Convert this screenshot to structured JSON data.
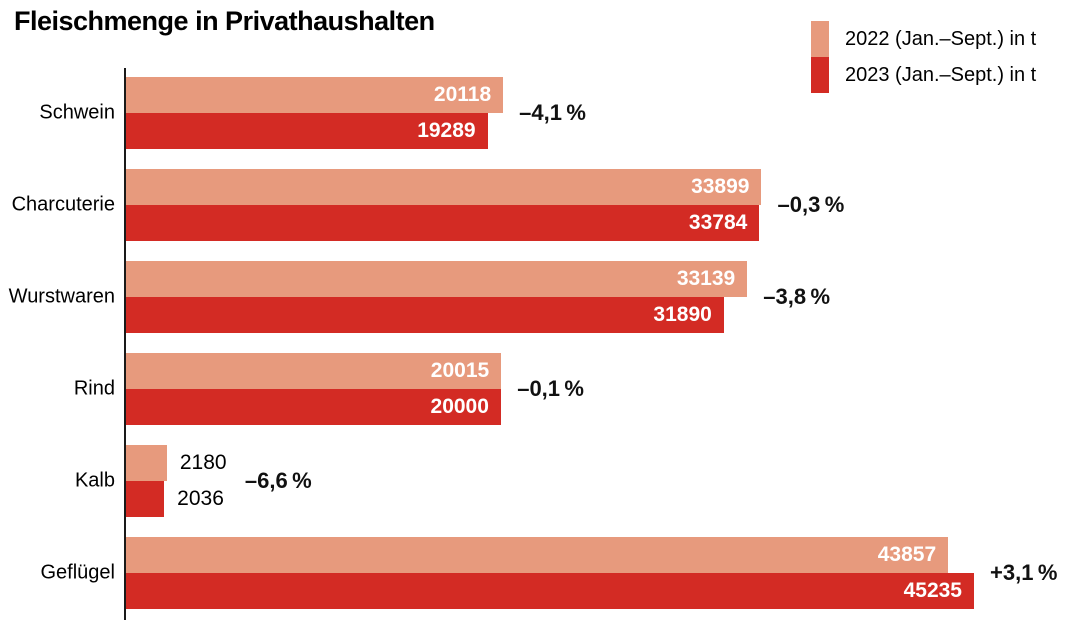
{
  "title": "Fleischmenge in Privathaushalten",
  "legend": {
    "items": [
      {
        "label": "2022 (Jan.–Sept.) in t",
        "color": "#e79a7d"
      },
      {
        "label": "2023 (Jan.–Sept.) in t",
        "color": "#d32b24"
      }
    ]
  },
  "chart_data": {
    "type": "bar",
    "orientation": "horizontal",
    "title": "Fleischmenge in Privathaushalten",
    "categories": [
      "Schwein",
      "Charcuterie",
      "Wurstwaren",
      "Rind",
      "Kalb",
      "Geflügel"
    ],
    "series": [
      {
        "name": "2022 (Jan.–Sept.) in t",
        "color": "#e79a7d",
        "values": [
          20118,
          33899,
          33139,
          20015,
          2180,
          43857
        ]
      },
      {
        "name": "2023 (Jan.–Sept.) in t",
        "color": "#d32b24",
        "values": [
          19289,
          33784,
          31890,
          20000,
          2036,
          45235
        ]
      }
    ],
    "change_labels": [
      "–4,1 %",
      "–0,3 %",
      "–3,8 %",
      "–0,1 %",
      "–6,6 %",
      "+3,1 %"
    ],
    "xlim": [
      0,
      45235
    ],
    "value_label_position": "inside-end-or-outside-when-short",
    "legend_position": "top-right",
    "grid": "off",
    "axis_style": "single-left-vertical-line"
  }
}
